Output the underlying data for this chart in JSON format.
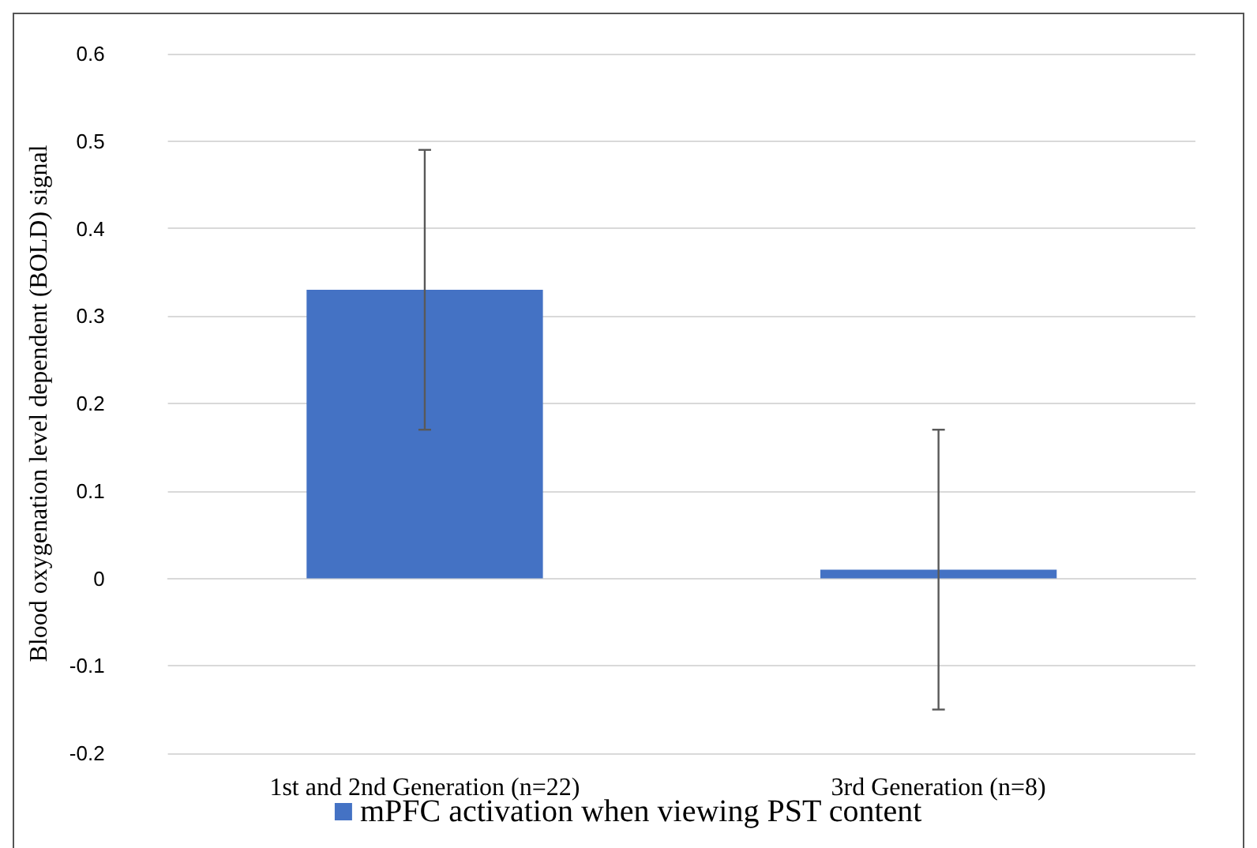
{
  "chart_data": {
    "type": "bar",
    "ylabel": "Blood oxygenation level dependent (BOLD) signal",
    "categories": [
      "1st and 2nd Generation (n=22)",
      "3rd Generation (n=8)"
    ],
    "series": [
      {
        "name": "mPFC activation when viewing PST content",
        "color": "#4472c4",
        "values": [
          0.33,
          0.01
        ],
        "errors": [
          0.16,
          0.16
        ]
      }
    ],
    "ylim": [
      -0.2,
      0.6
    ],
    "yticks": [
      -0.2,
      -0.1,
      0,
      0.1,
      0.2,
      0.3,
      0.4,
      0.5,
      0.6
    ],
    "grid": "y",
    "legend": "bottom"
  }
}
